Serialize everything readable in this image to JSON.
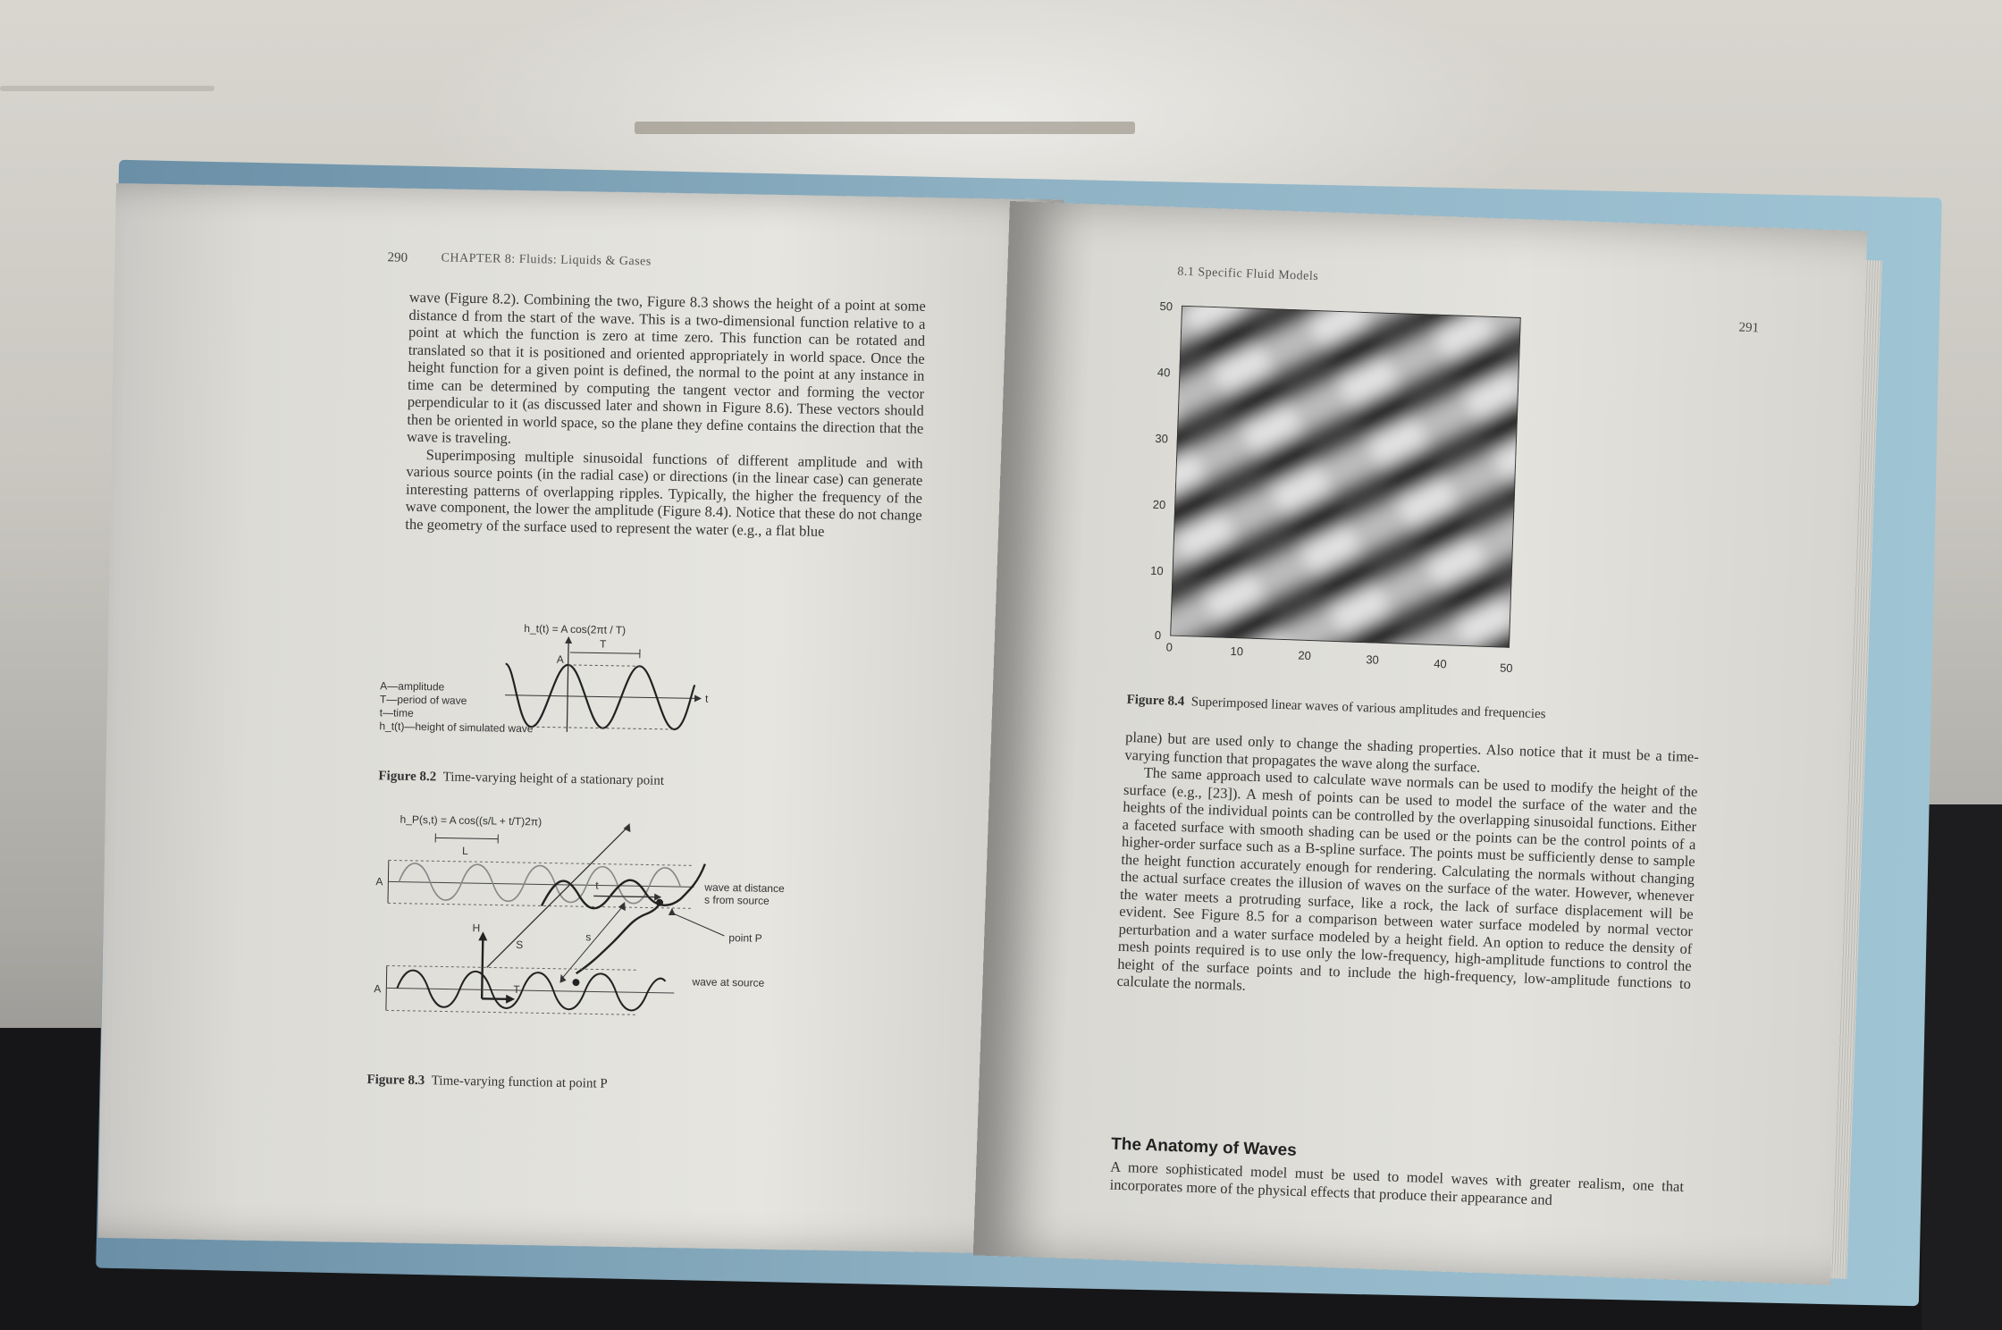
{
  "left_page": {
    "page_number": "290",
    "running_head": "CHAPTER 8: Fluids: Liquids & Gases",
    "paragraph_1": "wave (Figure 8.2). Combining the two, Figure 8.3 shows the height of a point at some distance d from the start of the wave. This is a two-dimensional function relative to a point at which the function is zero at time zero. This function can be rotated and translated so that it is positioned and oriented appropriately in world space. Once the height function for a given point is defined, the normal to the point at any instance in time can be determined by computing the tangent vector and forming the vector perpendicular to it (as discussed later and shown in Figure 8.6). These vectors should then be oriented in world space, so the plane they define contains the direction that the wave is traveling.",
    "paragraph_2": "Superimposing multiple sinusoidal functions of different amplitude and with various source points (in the radial case) or directions (in the linear case) can generate interesting patterns of overlapping ripples. Typically, the higher the frequency of the wave component, the lower the amplitude (Figure 8.4). Notice that these do not change the geometry of the surface used to represent the water (e.g., a flat blue",
    "figure_8_2": {
      "formula": "h_t(t) = A cos(2πt / T)",
      "legend": [
        "A—amplitude",
        "T—period of wave",
        "t—time",
        "h_t(t)—height of simulated wave"
      ],
      "label_A": "A",
      "label_T": "T",
      "label_t": "t",
      "caption_num": "Figure 8.2",
      "caption_text": "Time-varying height of a stationary point"
    },
    "figure_8_3": {
      "formula": "h_P(s,t) = A cos((s/L + t/T)2π)",
      "label_L": "L",
      "label_A_top": "A",
      "label_A_bottom": "A",
      "label_t": "t",
      "label_s": "s",
      "label_S": "S",
      "label_H": "H",
      "label_T": "T",
      "annotation_distance_1": "wave at distance",
      "annotation_distance_2": "s from source",
      "annotation_point": "point P",
      "annotation_source": "wave at source",
      "caption_num": "Figure 8.3",
      "caption_text": "Time-varying function at point P"
    }
  },
  "right_page": {
    "running_head": "8.1 Specific Fluid Models",
    "page_number": "291",
    "figure_8_4": {
      "y_ticks": [
        "50",
        "40",
        "30",
        "20",
        "10",
        "0"
      ],
      "x_ticks": [
        "0",
        "10",
        "20",
        "30",
        "40",
        "50"
      ],
      "caption_num": "Figure 8.4",
      "caption_text": "Superimposed linear waves of various amplitudes and frequencies"
    },
    "paragraph_1": "plane) but are used only to change the shading properties. Also notice that it must be a time-varying function that propagates the wave along the surface.",
    "paragraph_2": "The same approach used to calculate wave normals can be used to modify the height of the surface (e.g., [23]). A mesh of points can be used to model the surface of the water and the heights of the individual points can be controlled by the overlapping sinusoidal functions. Either a faceted surface with smooth shading can be used or the points can be the control points of a higher-order surface such as a B-spline surface. The points must be sufficiently dense to sample the height function accurately enough for rendering. Calculating the normals without changing the actual surface creates the illusion of waves on the surface of the water. However, whenever the water meets a protruding surface, like a rock, the lack of surface displacement will be evident. See Figure 8.5 for a comparison between water surface modeled by normal vector perturbation and a water surface modeled by a height field. An option to reduce the density of mesh points required is to use only the low-frequency, high-amplitude functions to control the height of the surface points and to include the high-frequency, low-amplitude functions to calculate the normals.",
    "section_heading": "The Anatomy of Waves",
    "paragraph_3": "A more sophisticated model must be used to model waves with greater realism, one that incorporates more of the physical effects that produce their appearance and"
  }
}
